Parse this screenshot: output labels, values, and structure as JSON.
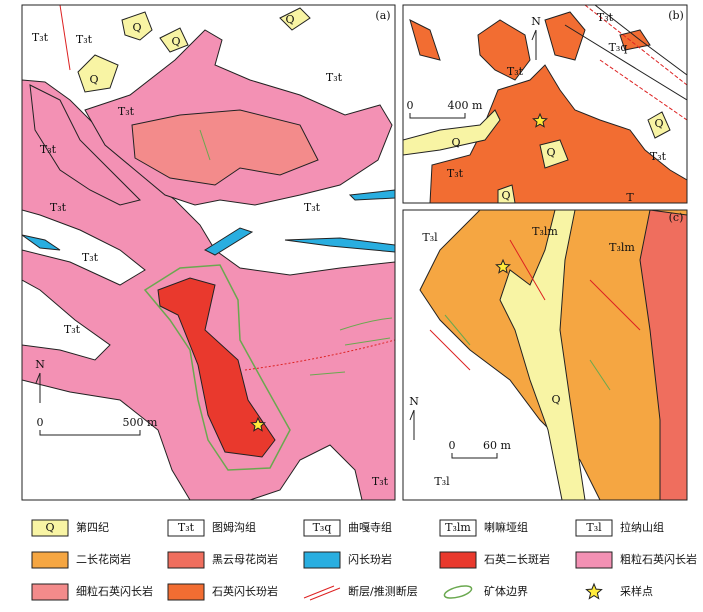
{
  "panels": [
    {
      "label": "(a)",
      "north": "N",
      "scale": [
        "0",
        "500 m"
      ],
      "map_labels": [
        "Q",
        "Q",
        "Q",
        "Q",
        "T₃t",
        "T₃t",
        "T₃t",
        "T₃t",
        "T₃t",
        "T₃t",
        "T₃t",
        "T₃t",
        "T₃t",
        "T₃t"
      ]
    },
    {
      "label": "(b)",
      "north": "N",
      "scale": [
        "0",
        "400 m"
      ],
      "map_labels": [
        "T₃t",
        "T₃q",
        "T₃t",
        "T₃t",
        "T₃t",
        "Q",
        "Q",
        "Q",
        "Q",
        "T"
      ]
    },
    {
      "label": "(c)",
      "north": "N",
      "scale": [
        "0",
        "60 m"
      ],
      "map_labels": [
        "T₃l",
        "T₃lm",
        "T₃lm",
        "Q",
        "T₃l"
      ]
    }
  ],
  "legend": [
    {
      "symbol": "Q",
      "name": "第四纪"
    },
    {
      "symbol": "T₃t",
      "name": "图姆沟组"
    },
    {
      "symbol": "T₃q",
      "name": "曲嘎寺组"
    },
    {
      "symbol": "T₃lm",
      "name": "喇嘛垭组"
    },
    {
      "symbol": "T₃l",
      "name": "拉纳山组"
    },
    {
      "name": "二长花岗岩"
    },
    {
      "name": "黑云母花岗岩"
    },
    {
      "name": "闪长玢岩"
    },
    {
      "name": "石英二长斑岩"
    },
    {
      "name": "粗粒石英闪长岩"
    },
    {
      "name": "细粒石英闪长岩"
    },
    {
      "name": "石英闪长玢岩"
    },
    {
      "name": "断层/推测断层"
    },
    {
      "name": "矿体边界"
    },
    {
      "name": "采样点"
    }
  ]
}
